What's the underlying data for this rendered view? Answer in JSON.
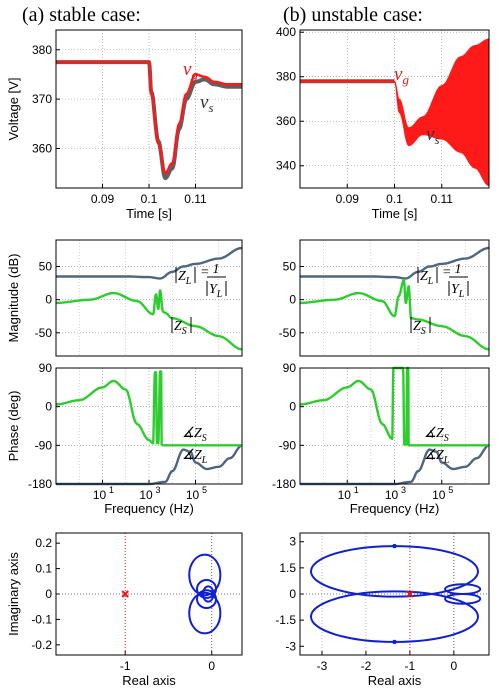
{
  "columns": [
    "(a) stable case:",
    "(b) unstable case:"
  ],
  "colors": {
    "vg": "#ff1a1a",
    "vs": "#606060",
    "zl": "#4f6580",
    "zs": "#2ecc2e",
    "nyq": "#1020d0",
    "crit": "#e31a1c"
  },
  "chart_data": [
    {
      "id": "voltage-a",
      "type": "line",
      "title": "",
      "xlabel": "Time [s]",
      "ylabel": "Voltage [V]",
      "xlim": [
        0.08,
        0.12
      ],
      "ylim": [
        352,
        384
      ],
      "xticks": [
        0.09,
        0.1,
        0.11
      ],
      "xtick_labels": [
        "0.09",
        "0.1",
        "0.11"
      ],
      "yticks": [
        360,
        370,
        380
      ],
      "ytick_labels": [
        "360",
        "370",
        "380"
      ],
      "grid": "dotted",
      "series": [
        {
          "name": "vg",
          "label_base": "v",
          "label_sub": "g",
          "x": [
            0.08,
            0.1,
            0.1005,
            0.102,
            0.1035,
            0.105,
            0.1065,
            0.108,
            0.11,
            0.112,
            0.114,
            0.117,
            0.12
          ],
          "y": [
            377.5,
            377.5,
            371,
            361,
            355,
            357,
            365,
            371,
            375,
            374.5,
            373.5,
            373,
            373
          ]
        },
        {
          "name": "vs",
          "label_base": "v",
          "label_sub": "s",
          "x": [
            0.08,
            0.1,
            0.1005,
            0.102,
            0.1035,
            0.105,
            0.1065,
            0.108,
            0.11,
            0.112,
            0.114,
            0.117,
            0.12
          ],
          "y": [
            377.5,
            377.5,
            371.5,
            361.5,
            354,
            356,
            364,
            370,
            373.5,
            374,
            373,
            372.5,
            372.5
          ]
        }
      ]
    },
    {
      "id": "voltage-b",
      "type": "line",
      "title": "",
      "xlabel": "Time [s]",
      "ylabel": "",
      "xlim": [
        0.08,
        0.12
      ],
      "ylim": [
        330,
        401
      ],
      "xticks": [
        0.09,
        0.1,
        0.11
      ],
      "xtick_labels": [
        "0.09",
        "0.1",
        "0.11"
      ],
      "yticks": [
        340,
        360,
        380,
        400
      ],
      "ytick_labels": [
        "340",
        "360",
        "380",
        "400"
      ],
      "grid": "dotted",
      "envelope_upper": {
        "x": [
          0.1,
          0.101,
          0.103,
          0.106,
          0.11,
          0.114,
          0.117,
          0.12
        ],
        "y": [
          378,
          370,
          357,
          362,
          376,
          389,
          394,
          397
        ]
      },
      "envelope_lower": {
        "x": [
          0.1,
          0.101,
          0.103,
          0.106,
          0.11,
          0.114,
          0.117,
          0.12
        ],
        "y": [
          378,
          364,
          349,
          354,
          352,
          346,
          339,
          331
        ]
      },
      "series": [
        {
          "name": "vg",
          "label_base": "v",
          "label_sub": "g",
          "x": [
            0.08,
            0.1
          ],
          "y": [
            378,
            378
          ]
        },
        {
          "name": "vs",
          "label_base": "v",
          "label_sub": "s",
          "x": [
            0.08,
            0.1
          ],
          "y": [
            378,
            378
          ]
        }
      ]
    },
    {
      "id": "magnitude-a",
      "type": "line",
      "xlabel": "",
      "ylabel": "Magnitude (dB)",
      "xscale": "log",
      "xlim": [
        0.1,
        10000000
      ],
      "ylim": [
        -85,
        90
      ],
      "yticks": [
        -50,
        0,
        50
      ],
      "ytick_labels": [
        "-50",
        "0",
        "50"
      ],
      "grid": "dotted",
      "series": [
        {
          "name": "ZL",
          "x": [
            0.1,
            100,
            1000,
            3000,
            10000,
            30000,
            100000,
            1000000,
            10000000
          ],
          "y": [
            35,
            35,
            34,
            32,
            42,
            50,
            54,
            62,
            78
          ]
        },
        {
          "name": "ZS",
          "x": [
            0.1,
            3,
            30,
            300,
            1500,
            2000,
            2500,
            3000,
            4000,
            5000,
            10000,
            100000,
            1000000,
            10000000
          ],
          "y": [
            -5,
            0,
            10,
            -2,
            -22,
            8,
            -14,
            14,
            -18,
            -20,
            -28,
            -40,
            -55,
            -75
          ]
        }
      ],
      "labels": {
        "zl": "Z",
        "zl_sub": "L",
        "one": "1",
        "yl": "Y",
        "yl_sub": "L",
        "zs": "Z",
        "zs_sub": "S"
      }
    },
    {
      "id": "magnitude-b",
      "type": "line",
      "xlabel": "",
      "ylabel": "",
      "xscale": "log",
      "xlim": [
        0.1,
        10000000
      ],
      "ylim": [
        -85,
        90
      ],
      "yticks": [
        -50,
        0,
        50
      ],
      "ytick_labels": [
        "-50",
        "0",
        "50"
      ],
      "grid": "dotted",
      "series": [
        {
          "name": "ZL",
          "x": [
            0.1,
            100,
            1000,
            3000,
            10000,
            30000,
            100000,
            1000000,
            10000000
          ],
          "y": [
            35,
            35,
            34,
            32,
            42,
            50,
            54,
            62,
            78
          ]
        },
        {
          "name": "ZS",
          "x": [
            0.1,
            3,
            30,
            300,
            1000,
            1500,
            2500,
            3000,
            4000,
            5000,
            10000,
            100000,
            1000000,
            10000000
          ],
          "y": [
            -5,
            0,
            10,
            -2,
            -25,
            5,
            30,
            -5,
            20,
            -28,
            -30,
            -40,
            -55,
            -75
          ]
        }
      ],
      "labels": {
        "zl": "Z",
        "zl_sub": "L",
        "one": "1",
        "yl": "Y",
        "yl_sub": "L",
        "zs": "Z",
        "zs_sub": "S"
      }
    },
    {
      "id": "phase-a",
      "type": "line",
      "xlabel": "Frequency   (Hz)",
      "ylabel": "Phase (deg)",
      "xscale": "log",
      "xlim": [
        0.1,
        10000000
      ],
      "ylim": [
        -180,
        90
      ],
      "yticks": [
        -180,
        -90,
        0,
        90
      ],
      "ytick_labels": [
        "-180",
        "-90",
        "0",
        "90"
      ],
      "xticks": [
        10,
        1000,
        100000
      ],
      "xtick_labels": [
        "10",
        "10",
        "10"
      ],
      "xtick_exps": [
        "1",
        "3",
        "5"
      ],
      "grid": "dotted",
      "series": [
        {
          "name": "ZL",
          "x": [
            0.1,
            1000,
            5000,
            10000,
            30000,
            60000,
            100000,
            300000,
            1000000,
            3000000,
            10000000
          ],
          "y": [
            -180,
            -180,
            -175,
            -150,
            -100,
            -105,
            -130,
            -145,
            -140,
            -120,
            -90
          ]
        },
        {
          "name": "ZS",
          "x": [
            0.1,
            1,
            10,
            30,
            100,
            300,
            1000,
            1500,
            1800,
            2000,
            2200,
            2500,
            3000,
            3300,
            3500,
            4000,
            10000000
          ],
          "y": [
            5,
            15,
            45,
            60,
            40,
            -40,
            -78,
            -85,
            80,
            80,
            -85,
            -85,
            82,
            82,
            -88,
            -90,
            -90
          ]
        }
      ],
      "labels": {
        "zs": "Z",
        "zs_sub": "S",
        "zl": "Z",
        "zl_sub": "L",
        "angle": "∡"
      }
    },
    {
      "id": "phase-b",
      "type": "line",
      "xlabel": "Frequency   (Hz)",
      "ylabel": "",
      "xscale": "log",
      "xlim": [
        0.1,
        10000000
      ],
      "ylim": [
        -180,
        90
      ],
      "yticks": [
        -180,
        -90,
        0,
        90
      ],
      "ytick_labels": [
        "-180",
        "-90",
        "0",
        "90"
      ],
      "xticks": [
        10,
        1000,
        100000
      ],
      "xtick_labels": [
        "10",
        "10",
        "10"
      ],
      "xtick_exps": [
        "1",
        "3",
        "5"
      ],
      "grid": "dotted",
      "series": [
        {
          "name": "ZL",
          "x": [
            0.1,
            1000,
            5000,
            10000,
            30000,
            60000,
            100000,
            300000,
            1000000,
            3000000,
            10000000
          ],
          "y": [
            -180,
            -180,
            -175,
            -150,
            -100,
            -105,
            -130,
            -145,
            -140,
            -120,
            -90
          ]
        },
        {
          "name": "ZS",
          "x": [
            0.1,
            1,
            10,
            30,
            100,
            300,
            800,
            900,
            1100,
            2300,
            2600,
            3200,
            3400,
            3800,
            4000,
            10000000
          ],
          "y": [
            5,
            15,
            45,
            60,
            40,
            -40,
            -75,
            90,
            90,
            90,
            -88,
            -88,
            90,
            90,
            -90,
            -90
          ]
        }
      ],
      "labels": {
        "zs": "Z",
        "zs_sub": "S",
        "zl": "Z",
        "zl_sub": "L",
        "angle": "∡"
      }
    },
    {
      "id": "nyquist-a",
      "type": "line",
      "xlabel": "Real axis",
      "ylabel": "Imaginary axis",
      "xlim": [
        -1.8,
        0.35
      ],
      "ylim": [
        -0.24,
        0.24
      ],
      "xticks": [
        -1,
        0
      ],
      "xtick_labels": [
        "-1",
        "0"
      ],
      "yticks": [
        -0.2,
        -0.1,
        0,
        0.1,
        0.2
      ],
      "ytick_labels": [
        "-0.2",
        "-0.1",
        "0",
        "0.1",
        "0.2"
      ],
      "critical_point": [
        -1,
        0
      ],
      "loops": [
        {
          "cx": -0.08,
          "cy": 0.075,
          "rx": 0.18,
          "ry": 0.08
        },
        {
          "cx": -0.08,
          "cy": -0.075,
          "rx": 0.18,
          "ry": 0.08
        },
        {
          "cx": -0.06,
          "cy": 0.02,
          "rx": 0.11,
          "ry": 0.035
        },
        {
          "cx": -0.06,
          "cy": -0.02,
          "rx": 0.11,
          "ry": 0.035
        },
        {
          "cx": -0.04,
          "cy": 0.0,
          "rx": 0.06,
          "ry": 0.03
        }
      ]
    },
    {
      "id": "nyquist-b",
      "type": "line",
      "xlabel": "Real axis",
      "ylabel": "",
      "xlim": [
        -3.5,
        0.8
      ],
      "ylim": [
        -3.5,
        3.5
      ],
      "xticks": [
        -3,
        -2,
        -1,
        0
      ],
      "xtick_labels": [
        "-3",
        "-2",
        "-1",
        "0"
      ],
      "yticks": [
        -3,
        -1.5,
        0,
        1.5,
        3
      ],
      "ytick_labels": [
        "-3",
        "-1.5",
        "0",
        "1.5",
        "3"
      ],
      "critical_point": [
        -1,
        0
      ],
      "loops": [
        {
          "cx": -1.35,
          "cy": 1.3,
          "rx": 1.9,
          "ry": 1.45
        },
        {
          "cx": -1.35,
          "cy": -1.3,
          "rx": 1.9,
          "ry": 1.45
        },
        {
          "cx": 0.2,
          "cy": 0.28,
          "rx": 0.4,
          "ry": 0.28
        },
        {
          "cx": 0.2,
          "cy": -0.28,
          "rx": 0.4,
          "ry": 0.28
        }
      ],
      "arrows": [
        [
          -1.35,
          2.75
        ],
        [
          -1.35,
          -2.75
        ]
      ]
    }
  ]
}
